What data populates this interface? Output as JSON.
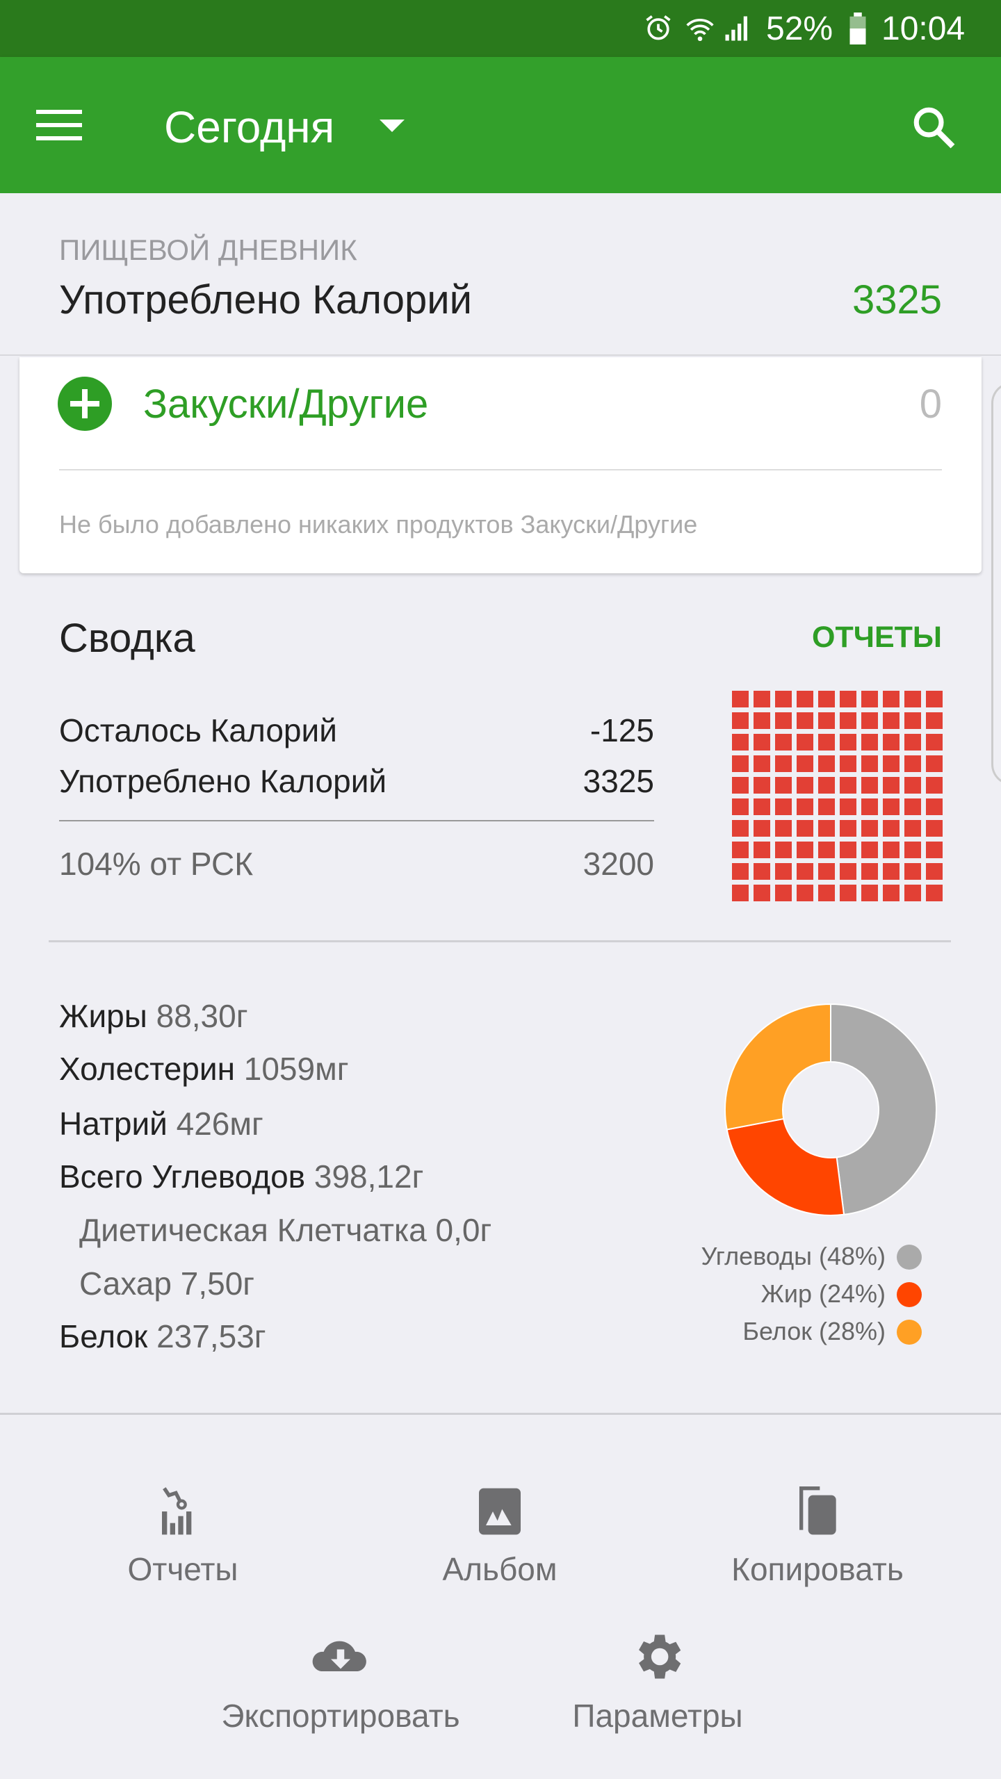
{
  "status_bar": {
    "battery": "52%",
    "time": "10:04",
    "icons": [
      "alarm-icon",
      "wifi-icon",
      "signal-icon",
      "battery-icon"
    ]
  },
  "app_bar": {
    "title": "Сегодня",
    "menu_icon": "menu-icon",
    "search_icon": "search-icon"
  },
  "header": {
    "subtitle": "ПИЩЕВОЙ ДНЕВНИК",
    "label": "Употреблено Калорий",
    "value": "3325"
  },
  "meal_card": {
    "title": "Закуски/Другие",
    "value": "0",
    "empty_text": "Не было добавлено никаких продуктов Закуски/Другие"
  },
  "summary": {
    "title": "Сводка",
    "reports_link": "ОТЧЕТЫ",
    "rows": [
      {
        "label": "Осталось Калорий",
        "value": "-125"
      },
      {
        "label": "Употреблено Калорий",
        "value": "3325"
      }
    ],
    "rdi": {
      "label": "104% от РСК",
      "value": "3200"
    },
    "grid_fill_percent": 100,
    "grid_color": "#e24035"
  },
  "nutrients": [
    {
      "label": "Жиры",
      "value": "88,30г",
      "indent": false
    },
    {
      "label": "Холестерин",
      "value": "1059мг",
      "indent": false
    },
    {
      "label": "Натрий",
      "value": "426мг",
      "indent": false
    },
    {
      "label": "Всего Углеводов",
      "value": "398,12г",
      "indent": false
    },
    {
      "label": "Диетическая Клетчатка",
      "value": "0,0г",
      "indent": true
    },
    {
      "label": "Сахар",
      "value": "7,50г",
      "indent": true
    },
    {
      "label": "Белок",
      "value": "237,53г",
      "indent": false
    }
  ],
  "chart_data": {
    "type": "pie",
    "donut": true,
    "legend_position": "bottom-right",
    "slices": [
      {
        "name": "Углеводы (48%)",
        "value": 48,
        "color": "#aaaaaa"
      },
      {
        "name": "Жир (24%)",
        "value": 24,
        "color": "#ff4500"
      },
      {
        "name": "Белок (28%)",
        "value": 28,
        "color": "#ffa024"
      }
    ]
  },
  "actions": [
    {
      "label": "Отчеты",
      "icon": "reports-chart-icon"
    },
    {
      "label": "Альбом",
      "icon": "image-album-icon"
    },
    {
      "label": "Копировать",
      "icon": "copy-icon"
    },
    {
      "label": "Экспортировать",
      "icon": "cloud-download-icon"
    },
    {
      "label": "Параметры",
      "icon": "gear-icon"
    }
  ]
}
